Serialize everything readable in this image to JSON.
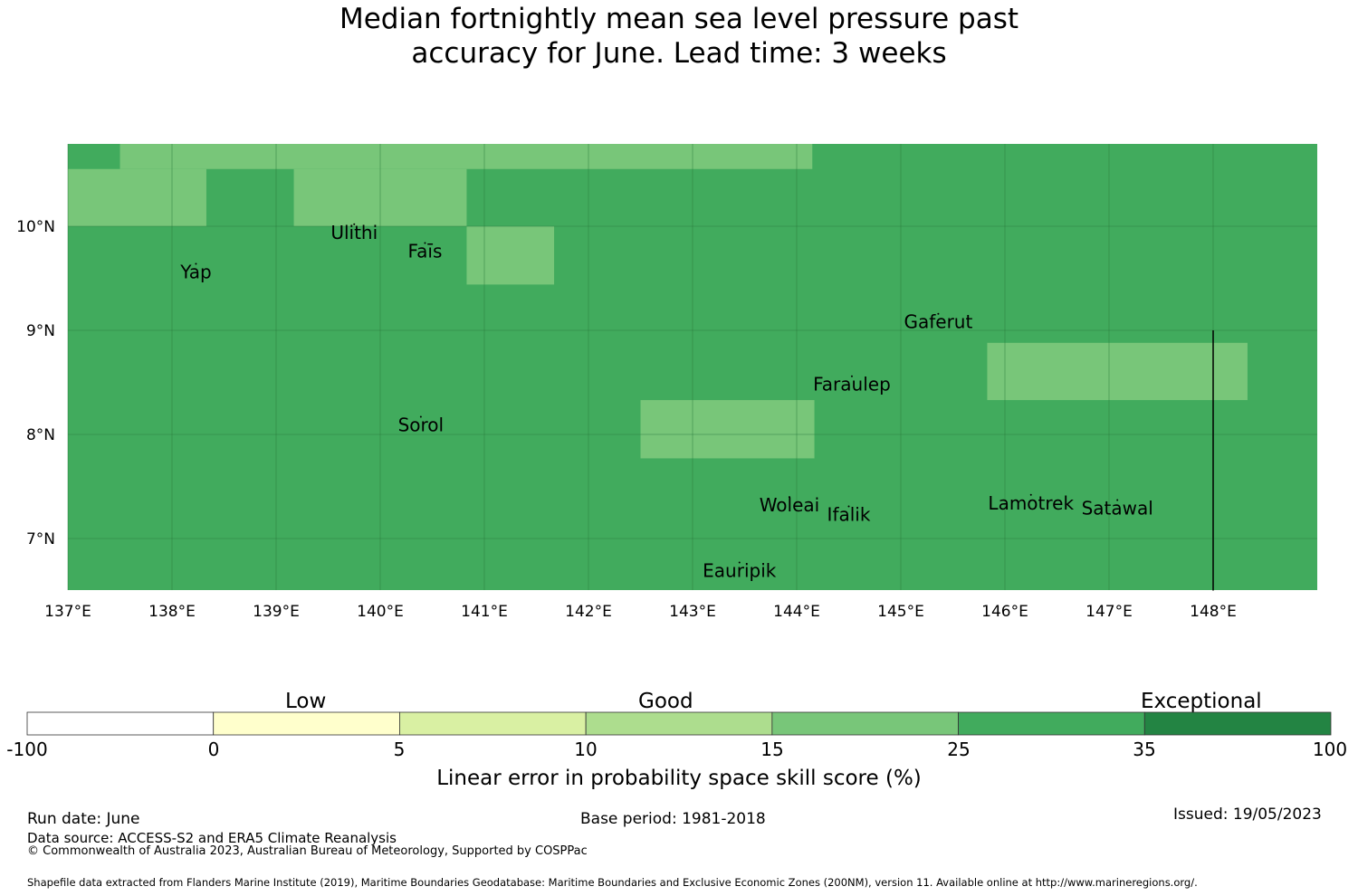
{
  "title_lines": [
    "Median fortnightly mean sea level pressure past",
    "accuracy for June. Lead time: 3 weeks"
  ],
  "map": {
    "lon_ticks": [
      "137°E",
      "138°E",
      "139°E",
      "140°E",
      "141°E",
      "142°E",
      "143°E",
      "144°E",
      "145°E",
      "146°E",
      "147°E",
      "148°E"
    ],
    "lat_ticks": [
      "10°N",
      "9°N",
      "8°N",
      "7°N"
    ],
    "lon_range": [
      137.0,
      149.0
    ],
    "lat_range": [
      6.5,
      10.8
    ],
    "gridlines": true,
    "background_category": "25-35",
    "cells": [
      {
        "lon": [
          137.0,
          137.5
        ],
        "lat": [
          10.55,
          10.8
        ],
        "category": "25-35"
      },
      {
        "lon": [
          137.5,
          144.15
        ],
        "lat": [
          10.55,
          10.8
        ],
        "category": "15-25"
      },
      {
        "lon": [
          137.0,
          138.33
        ],
        "lat": [
          10.0,
          10.55
        ],
        "category": "15-25"
      },
      {
        "lon": [
          139.17,
          140.83
        ],
        "lat": [
          10.0,
          10.55
        ],
        "category": "15-25"
      },
      {
        "lon": [
          140.83,
          141.67
        ],
        "lat": [
          9.44,
          10.0
        ],
        "category": "15-25"
      },
      {
        "lon": [
          142.5,
          144.17
        ],
        "lat": [
          7.77,
          8.33
        ],
        "category": "15-25"
      },
      {
        "lon": [
          145.83,
          148.33
        ],
        "lat": [
          8.33,
          8.88
        ],
        "category": "15-25"
      }
    ],
    "boundary_line": {
      "lon": 148.0,
      "lat": [
        6.5,
        9.0
      ]
    },
    "places": [
      {
        "name": "Ulithi",
        "lon": 139.75,
        "lat": 9.88
      },
      {
        "name": "Faīs",
        "lon": 140.43,
        "lat": 9.7
      },
      {
        "name": "Yap",
        "lon": 138.23,
        "lat": 9.5
      },
      {
        "name": "Gaferut",
        "lon": 145.36,
        "lat": 9.02
      },
      {
        "name": "Faraulep",
        "lon": 144.53,
        "lat": 8.42
      },
      {
        "name": "Sorol",
        "lon": 140.39,
        "lat": 8.03
      },
      {
        "name": "Woleai",
        "lon": 143.93,
        "lat": 7.26
      },
      {
        "name": "Ifalik",
        "lon": 144.5,
        "lat": 7.17
      },
      {
        "name": "Lamotrek",
        "lon": 146.25,
        "lat": 7.28
      },
      {
        "name": "Satawal",
        "lon": 147.08,
        "lat": 7.23
      },
      {
        "name": "Eauripik",
        "lon": 143.45,
        "lat": 6.63
      }
    ],
    "colors": {
      "gridline": "#2a7a3c",
      "label": "#000000"
    }
  },
  "colorbar": {
    "bins": [
      {
        "from": "-100",
        "to": "0",
        "color": "#ffffff"
      },
      {
        "from": "0",
        "to": "5",
        "color": "#ffffcc"
      },
      {
        "from": "5",
        "to": "10",
        "color": "#d9f0a3"
      },
      {
        "from": "10",
        "to": "15",
        "color": "#addd8e"
      },
      {
        "from": "15",
        "to": "25",
        "color": "#78c679"
      },
      {
        "from": "25",
        "to": "35",
        "color": "#41ab5d"
      },
      {
        "from": "35",
        "to": "100",
        "color": "#238443"
      }
    ],
    "tick_labels": [
      "-100",
      "0",
      "5",
      "10",
      "15",
      "25",
      "35",
      "100"
    ],
    "category_labels": [
      "Low",
      "Good",
      "Exceptional"
    ],
    "title": "Linear error in probability space skill score (%)"
  },
  "footer": {
    "run_date": "Run date: June",
    "base_period": "Base period: 1981-2018",
    "issued": "Issued: 19/05/2023",
    "data_source": "Data source: ACCESS-S2 and ERA5 Climate Reanalysis",
    "copyright": "© Commonwealth of Australia 2023, Australian Bureau of Meteorology, Supported by COSPPac",
    "shapefile": "Shapefile data extracted from Flanders Marine Institute (2019), Maritime Boundaries Geodatabase: Maritime Boundaries and Exclusive Economic Zones (200NM), version 11. Available online at http://www.marineregions.org/."
  }
}
